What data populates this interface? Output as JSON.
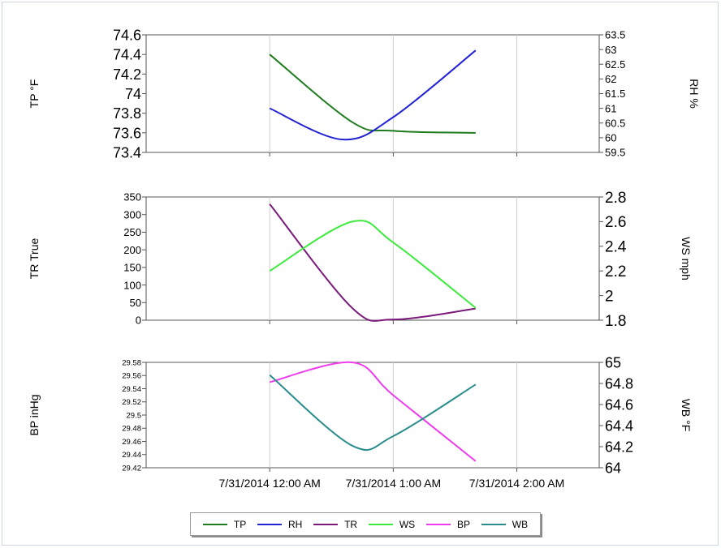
{
  "chart_data": [
    {
      "type": "line",
      "panel": "top",
      "x_ticks": [
        "7/31/2014 12:00 AM",
        "7/31/2014 1:00 AM",
        "7/31/2014 2:00 AM"
      ],
      "xlim": [
        "7/31/2014 11:00 PM (prev day)",
        "7/31/2014 2:40 AM"
      ],
      "left_axis": {
        "label": "TP °F",
        "ticks": [
          "73.4",
          "73.6",
          "73.8",
          "74",
          "74.2",
          "74.4",
          "74.6"
        ],
        "ylim": [
          73.4,
          74.6
        ]
      },
      "right_axis": {
        "label": "RH %",
        "ticks": [
          "59.5",
          "60",
          "60.5",
          "61",
          "61.5",
          "62",
          "62.5",
          "63",
          "63.5"
        ],
        "ylim": [
          59.5,
          63.5
        ]
      },
      "series": [
        {
          "name": "TP",
          "axis": "left",
          "color": "#1e7b1e",
          "points": [
            [
              "7/31/2014 12:00 AM",
              74.4
            ],
            [
              "7/31/2014 12:40 AM",
              73.71
            ],
            [
              "7/31/2014 1:00 AM",
              73.62
            ],
            [
              "7/31/2014 1:40 AM",
              73.6
            ]
          ]
        },
        {
          "name": "RH",
          "axis": "left_right",
          "color": "#2323d6",
          "points": [
            [
              "7/31/2014 12:00 AM",
              61.0
            ],
            [
              "7/31/2014 12:35 AM",
              59.94
            ],
            [
              "7/31/2014 1:00 AM",
              60.7
            ],
            [
              "7/31/2014 1:40 AM",
              62.97
            ]
          ]
        }
      ],
      "grid": "vertical"
    },
    {
      "type": "line",
      "panel": "middle",
      "x_ticks": [
        "7/31/2014 12:00 AM",
        "7/31/2014 1:00 AM",
        "7/31/2014 2:00 AM"
      ],
      "left_axis": {
        "label": "TR True",
        "ticks": [
          "0",
          "50",
          "100",
          "150",
          "200",
          "250",
          "300",
          "350"
        ],
        "ylim": [
          0,
          350
        ]
      },
      "right_axis": {
        "label": "WS mph",
        "ticks": [
          "1.8",
          "2",
          "2.2",
          "2.4",
          "2.6",
          "2.8"
        ],
        "ylim": [
          1.8,
          2.8
        ]
      },
      "series": [
        {
          "name": "TR",
          "axis": "left",
          "color": "#7b1a7b",
          "points": [
            [
              "7/31/2014 12:00 AM",
              330
            ],
            [
              "7/31/2014 12:40 AM",
              35
            ],
            [
              "7/31/2014 1:00 AM",
              2
            ],
            [
              "7/31/2014 1:40 AM",
              33
            ]
          ]
        },
        {
          "name": "WS",
          "axis": "right",
          "color": "#3dea3d",
          "points": [
            [
              "7/31/2014 12:00 AM",
              2.2
            ],
            [
              "7/31/2014 12:40 AM",
              2.6
            ],
            [
              "7/31/2014 1:00 AM",
              2.43
            ],
            [
              "7/31/2014 1:40 AM",
              1.9
            ]
          ]
        }
      ],
      "grid": "vertical"
    },
    {
      "type": "line",
      "panel": "bottom",
      "x_ticks": [
        "7/31/2014 12:00 AM",
        "7/31/2014 1:00 AM",
        "7/31/2014 2:00 AM"
      ],
      "left_axis": {
        "label": "BP inHg",
        "ticks": [
          "29.42",
          "29.44",
          "29.46",
          "29.48",
          "29.5",
          "29.52",
          "29.54",
          "29.56",
          "29.58"
        ],
        "ylim": [
          29.42,
          29.58
        ]
      },
      "right_axis": {
        "label": "WB °F",
        "ticks": [
          "64",
          "64.2",
          "64.4",
          "64.6",
          "64.8",
          "65"
        ],
        "ylim": [
          64.0,
          65.0
        ]
      },
      "series": [
        {
          "name": "BP",
          "axis": "left",
          "color": "#ee3cee",
          "points": [
            [
              "7/31/2014 12:00 AM",
              29.55
            ],
            [
              "7/31/2014 12:40 AM",
              29.58
            ],
            [
              "7/31/2014 1:00 AM",
              29.53
            ],
            [
              "7/31/2014 1:40 AM",
              29.43
            ]
          ]
        },
        {
          "name": "WB",
          "axis": "right",
          "color": "#2a8c8c",
          "points": [
            [
              "7/31/2014 12:00 AM",
              64.88
            ],
            [
              "7/31/2014 12:40 AM",
              64.21
            ],
            [
              "7/31/2014 1:00 AM",
              64.3
            ],
            [
              "7/31/2014 1:40 AM",
              64.79
            ]
          ]
        }
      ],
      "grid": "vertical"
    }
  ],
  "legend": {
    "placement": "bottom-center",
    "items": [
      {
        "name": "TP",
        "color": "#1e7b1e"
      },
      {
        "name": "RH",
        "color": "#2323d6"
      },
      {
        "name": "TR",
        "color": "#7b1a7b"
      },
      {
        "name": "WS",
        "color": "#3dea3d"
      },
      {
        "name": "BP",
        "color": "#ee3cee"
      },
      {
        "name": "WB",
        "color": "#2a8c8c"
      }
    ]
  }
}
